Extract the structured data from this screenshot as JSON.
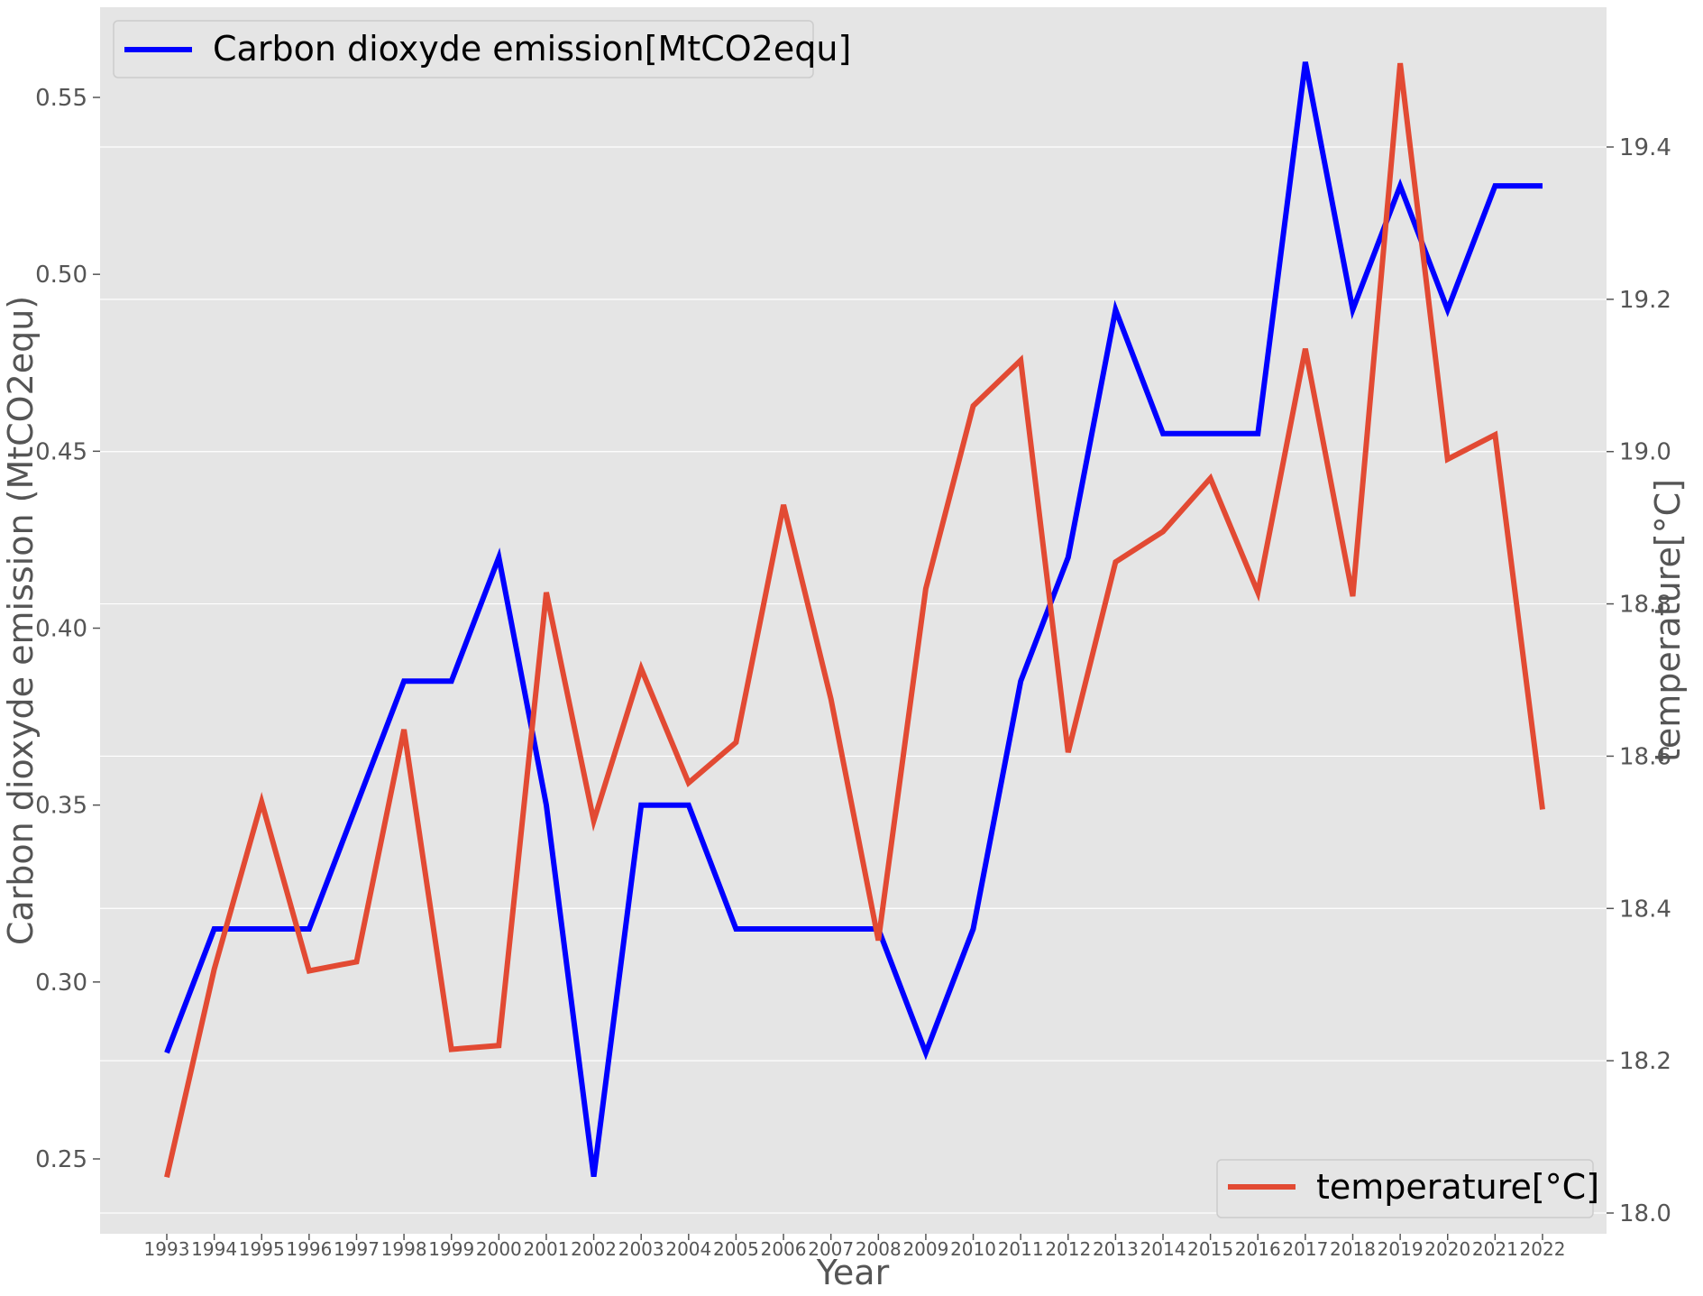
{
  "chart_data": {
    "type": "line",
    "xlabel": "Year",
    "ylabel_left": "Carbon dioxyde emission (MtCO2equ)",
    "ylabel_right": "temperature[°C]",
    "grid": true,
    "x": [
      "1993",
      "1994",
      "1995",
      "1996",
      "1997",
      "1998",
      "1999",
      "2000",
      "2001",
      "2002",
      "2003",
      "2004",
      "2005",
      "2006",
      "2007",
      "2008",
      "2009",
      "2010",
      "2011",
      "2012",
      "2013",
      "2014",
      "2015",
      "2016",
      "2017",
      "2018",
      "2019",
      "2020",
      "2021",
      "2022"
    ],
    "y_left": {
      "ylim": [
        0.232,
        0.57
      ],
      "ticks": [
        0.25,
        0.3,
        0.35,
        0.4,
        0.45,
        0.5,
        0.55
      ],
      "tick_labels": [
        "0.25",
        "0.30",
        "0.35",
        "0.40",
        "0.45",
        "0.50",
        "0.55"
      ]
    },
    "y_right": {
      "ylim": [
        17.995,
        19.57
      ],
      "ticks": [
        18.0,
        18.2,
        18.4,
        18.6,
        18.8,
        19.0,
        19.2,
        19.4
      ],
      "tick_labels": [
        "18.0",
        "18.2",
        "18.4",
        "18.6",
        "18.8",
        "19.0",
        "19.2",
        "19.4"
      ]
    },
    "series": [
      {
        "name": "Carbon dioxyde emission[MtCO2equ]",
        "axis": "left",
        "color": "#0000ff",
        "legend_position": "upper-left",
        "values": [
          0.28,
          0.315,
          0.315,
          0.315,
          0.35,
          0.385,
          0.385,
          0.42,
          0.35,
          0.245,
          0.35,
          0.35,
          0.315,
          0.315,
          0.315,
          0.315,
          0.28,
          0.315,
          0.385,
          0.42,
          0.49,
          0.455,
          0.455,
          0.455,
          0.56,
          0.49,
          0.525,
          0.49,
          0.525,
          0.525
        ]
      },
      {
        "name": "temperature[°C]",
        "axis": "right",
        "color": "#e24a33",
        "legend_position": "lower-right",
        "values": [
          18.047,
          18.32,
          18.54,
          18.318,
          18.33,
          18.635,
          18.215,
          18.22,
          18.815,
          18.515,
          18.715,
          18.565,
          18.618,
          18.93,
          18.675,
          18.358,
          18.82,
          19.06,
          19.12,
          18.605,
          18.855,
          18.895,
          18.965,
          18.815,
          19.135,
          18.81,
          19.51,
          18.99,
          19.022,
          18.53
        ]
      }
    ]
  }
}
